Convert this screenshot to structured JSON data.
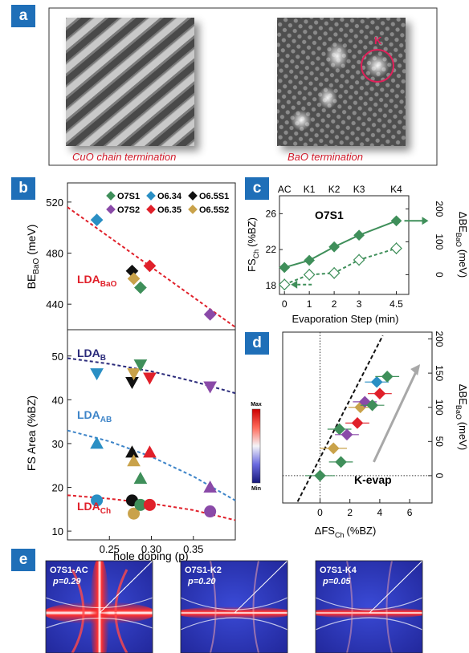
{
  "panels": {
    "a": "a",
    "b": "b",
    "c": "c",
    "d": "d",
    "e": "e"
  },
  "panel_a": {
    "left_caption": "CuO chain termination",
    "right_caption": "BaO termination",
    "marker": "K",
    "caption_color": "#d11a2a"
  },
  "chart_data": [
    {
      "id": "b-top",
      "type": "scatter",
      "ylabel": "BE",
      "ylabel_sub": "BaO",
      "ylabel_unit": "(meV)",
      "xlim": [
        0.2,
        0.4
      ],
      "ylim": [
        420,
        535
      ],
      "yticks": [
        440,
        480,
        520
      ],
      "legend": [
        {
          "name": "O7S1",
          "marker": "diamond",
          "color": "#3f8f5a"
        },
        {
          "name": "O6.34",
          "marker": "diamond",
          "color": "#2a8fc4"
        },
        {
          "name": "O6.5S1",
          "marker": "diamond",
          "color": "#111111"
        },
        {
          "name": "O7S2",
          "marker": "diamond",
          "color": "#8a4aa8"
        },
        {
          "name": "O6.35",
          "marker": "diamond",
          "color": "#e0202a"
        },
        {
          "name": "O6.5S2",
          "marker": "diamond",
          "color": "#c9a24a"
        }
      ],
      "points": [
        {
          "x": 0.235,
          "y": 506,
          "color": "#2a8fc4"
        },
        {
          "x": 0.277,
          "y": 466,
          "color": "#111111"
        },
        {
          "x": 0.279,
          "y": 460,
          "color": "#c9a24a"
        },
        {
          "x": 0.287,
          "y": 453,
          "color": "#3f8f5a"
        },
        {
          "x": 0.298,
          "y": 470,
          "color": "#e0202a"
        },
        {
          "x": 0.37,
          "y": 432,
          "color": "#8a4aa8"
        }
      ],
      "curve": {
        "label": "LDA",
        "label_sub": "BaO",
        "color": "#e0202a",
        "x": [
          0.2,
          0.4
        ],
        "y": [
          516,
          422
        ]
      }
    },
    {
      "id": "b-bottom",
      "type": "scatter",
      "xlabel": "hole doping (p)",
      "ylabel": "FS Area  (%BZ)",
      "xlim": [
        0.2,
        0.4
      ],
      "ylim": [
        8,
        56
      ],
      "xticks": [
        0.25,
        0.3,
        0.35
      ],
      "xtick_labels": [
        "0.25",
        "0.30",
        "0.35"
      ],
      "yticks": [
        10,
        20,
        30,
        40,
        50
      ],
      "groups": [
        {
          "name": "B",
          "marker": "triangle-down",
          "points": [
            {
              "x": 0.235,
              "y": 46,
              "color": "#2a8fc4"
            },
            {
              "x": 0.277,
              "y": 44,
              "color": "#111111"
            },
            {
              "x": 0.279,
              "y": 46,
              "color": "#c9a24a"
            },
            {
              "x": 0.287,
              "y": 48,
              "color": "#3f8f5a"
            },
            {
              "x": 0.298,
              "y": 45,
              "color": "#e0202a"
            },
            {
              "x": 0.37,
              "y": 43,
              "color": "#8a4aa8"
            }
          ]
        },
        {
          "name": "AB",
          "marker": "triangle-up",
          "points": [
            {
              "x": 0.235,
              "y": 30,
              "color": "#2a8fc4"
            },
            {
              "x": 0.277,
              "y": 28,
              "color": "#111111"
            },
            {
              "x": 0.279,
              "y": 26,
              "color": "#c9a24a"
            },
            {
              "x": 0.287,
              "y": 22,
              "color": "#3f8f5a"
            },
            {
              "x": 0.298,
              "y": 28,
              "color": "#e0202a"
            },
            {
              "x": 0.37,
              "y": 20,
              "color": "#8a4aa8"
            }
          ]
        },
        {
          "name": "Ch",
          "marker": "circle",
          "points": [
            {
              "x": 0.235,
              "y": 17,
              "color": "#2a8fc4"
            },
            {
              "x": 0.277,
              "y": 17,
              "color": "#111111"
            },
            {
              "x": 0.279,
              "y": 14,
              "color": "#c9a24a"
            },
            {
              "x": 0.287,
              "y": 16,
              "color": "#3f8f5a"
            },
            {
              "x": 0.298,
              "y": 16,
              "color": "#e0202a"
            },
            {
              "x": 0.37,
              "y": 14.5,
              "color": "#8a4aa8"
            }
          ]
        }
      ],
      "curves": [
        {
          "label": "LDA",
          "label_sub": "B",
          "color": "#2a2a7a",
          "x": [
            0.2,
            0.25,
            0.3,
            0.35,
            0.4
          ],
          "y": [
            49.5,
            48.2,
            46.5,
            44.2,
            41.5
          ]
        },
        {
          "label": "LDA",
          "label_sub": "AB",
          "color": "#3d84c8",
          "x": [
            0.2,
            0.25,
            0.3,
            0.35,
            0.4
          ],
          "y": [
            33,
            30.5,
            27,
            22.5,
            17
          ]
        },
        {
          "label": "LDA",
          "label_sub": "Ch",
          "color": "#e0202a",
          "x": [
            0.2,
            0.25,
            0.3,
            0.35,
            0.4
          ],
          "y": [
            18.2,
            17.4,
            16.3,
            14.8,
            12.5
          ]
        }
      ]
    },
    {
      "id": "c",
      "type": "line",
      "title": "O7S1",
      "xlabel": "Evaporation Step (min)",
      "ylabel": "FS",
      "ylabel_sub": "Ch",
      "ylabel_unit": "(%BZ)",
      "y2label": "ΔBE",
      "y2label_sub": "BaO",
      "y2label_unit": "(meV)",
      "xlim": [
        -0.2,
        5.0
      ],
      "ylim": [
        17,
        28
      ],
      "y2lim": [
        -60,
        240
      ],
      "xticks": [
        0,
        1,
        2,
        3,
        4.5
      ],
      "xtick_labels": [
        "0",
        "1",
        "2",
        "3",
        "4.5"
      ],
      "yticks": [
        18,
        22,
        26
      ],
      "y2ticks": [
        0,
        100,
        200
      ],
      "top_labels": [
        "AC",
        "K1",
        "K2",
        "K3",
        "K4"
      ],
      "series": [
        {
          "name": "",
          "axis": "left",
          "color": "#3f8f5a",
          "filled": true,
          "x": [
            0,
            1,
            2,
            3,
            4.5
          ],
          "y": [
            20,
            20.8,
            22.3,
            23.6,
            25.2
          ],
          "err": [
            0.3,
            0.3,
            0.3,
            0.3,
            0.3
          ]
        },
        {
          "name": "",
          "axis": "right",
          "color": "#3f8f5a",
          "filled": false,
          "x": [
            0,
            1,
            2,
            3,
            4.5
          ],
          "y": [
            -30,
            0,
            5,
            45,
            80
          ],
          "err": [
            18,
            18,
            18,
            18,
            18
          ]
        }
      ]
    },
    {
      "id": "d",
      "type": "scatter",
      "xlabel": "ΔFS",
      "xlabel_sub": "Ch",
      "xlabel_unit": "(%BZ)",
      "y2label": "ΔBE",
      "y2label_sub": "BaO",
      "y2label_unit": "(meV)",
      "annotation": "K-evap",
      "xlim": [
        -2.5,
        7.5
      ],
      "ylim": [
        -40,
        210
      ],
      "xticks": [
        0,
        2,
        4,
        6
      ],
      "y2ticks": [
        0,
        50,
        100,
        150,
        200
      ],
      "colorbar": {
        "max": "Max",
        "min": "Min"
      },
      "points": [
        {
          "x": 0,
          "y": 0,
          "xerr": 1.0,
          "color": "#3f8f5a"
        },
        {
          "x": 1.4,
          "y": 20,
          "xerr": 0.8,
          "color": "#3f8f5a"
        },
        {
          "x": 1.3,
          "y": 68,
          "xerr": 0.8,
          "color": "#3f8f5a"
        },
        {
          "x": 0.9,
          "y": 40,
          "xerr": 0.9,
          "color": "#c9a24a"
        },
        {
          "x": 1.8,
          "y": 60,
          "xerr": 0.8,
          "color": "#8a4aa8"
        },
        {
          "x": 2.5,
          "y": 77,
          "xerr": 0.8,
          "color": "#e0202a"
        },
        {
          "x": 2.7,
          "y": 100,
          "xerr": 0.8,
          "color": "#c9a24a"
        },
        {
          "x": 3.0,
          "y": 108,
          "xerr": 0.8,
          "color": "#8a4aa8"
        },
        {
          "x": 3.5,
          "y": 103,
          "xerr": 0.8,
          "color": "#3f8f5a"
        },
        {
          "x": 4.0,
          "y": 120,
          "xerr": 0.8,
          "color": "#e0202a"
        },
        {
          "x": 3.8,
          "y": 137,
          "xerr": 0.8,
          "color": "#2a8fc4"
        },
        {
          "x": 4.5,
          "y": 145,
          "xerr": 0.8,
          "color": "#3f8f5a"
        }
      ]
    }
  ],
  "panel_e": [
    {
      "label": "O7S1-AC",
      "p": "p=0.29"
    },
    {
      "label": "O7S1-K2",
      "p": "p=0.20"
    },
    {
      "label": "O7S1-K4",
      "p": "p=0.05"
    }
  ]
}
